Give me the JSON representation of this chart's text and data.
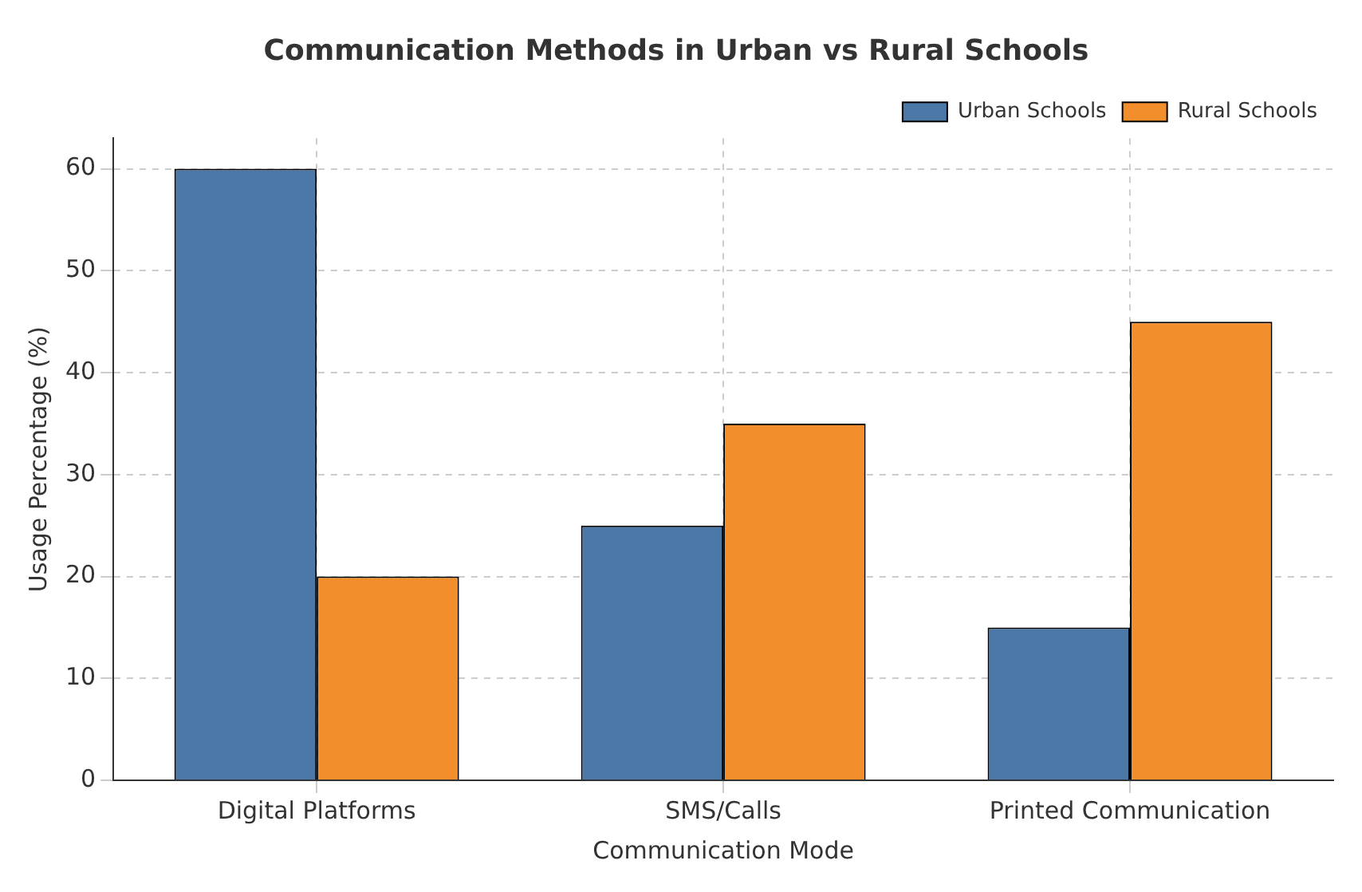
{
  "chart_data": {
    "type": "bar",
    "title": "Communication Methods in Urban vs Rural Schools",
    "xlabel": "Communication Mode",
    "ylabel": "Usage Percentage (%)",
    "categories": [
      "Digital Platforms",
      "SMS/Calls",
      "Printed Communication"
    ],
    "series": [
      {
        "name": "Urban Schools",
        "color": "#4c78a8",
        "values": [
          60,
          25,
          15
        ]
      },
      {
        "name": "Rural Schools",
        "color": "#f28e2b",
        "values": [
          20,
          35,
          45
        ]
      }
    ],
    "ylim": [
      0,
      63
    ],
    "yticks": [
      0,
      10,
      20,
      30,
      40,
      50,
      60
    ],
    "grid": true,
    "legend": "top right"
  }
}
